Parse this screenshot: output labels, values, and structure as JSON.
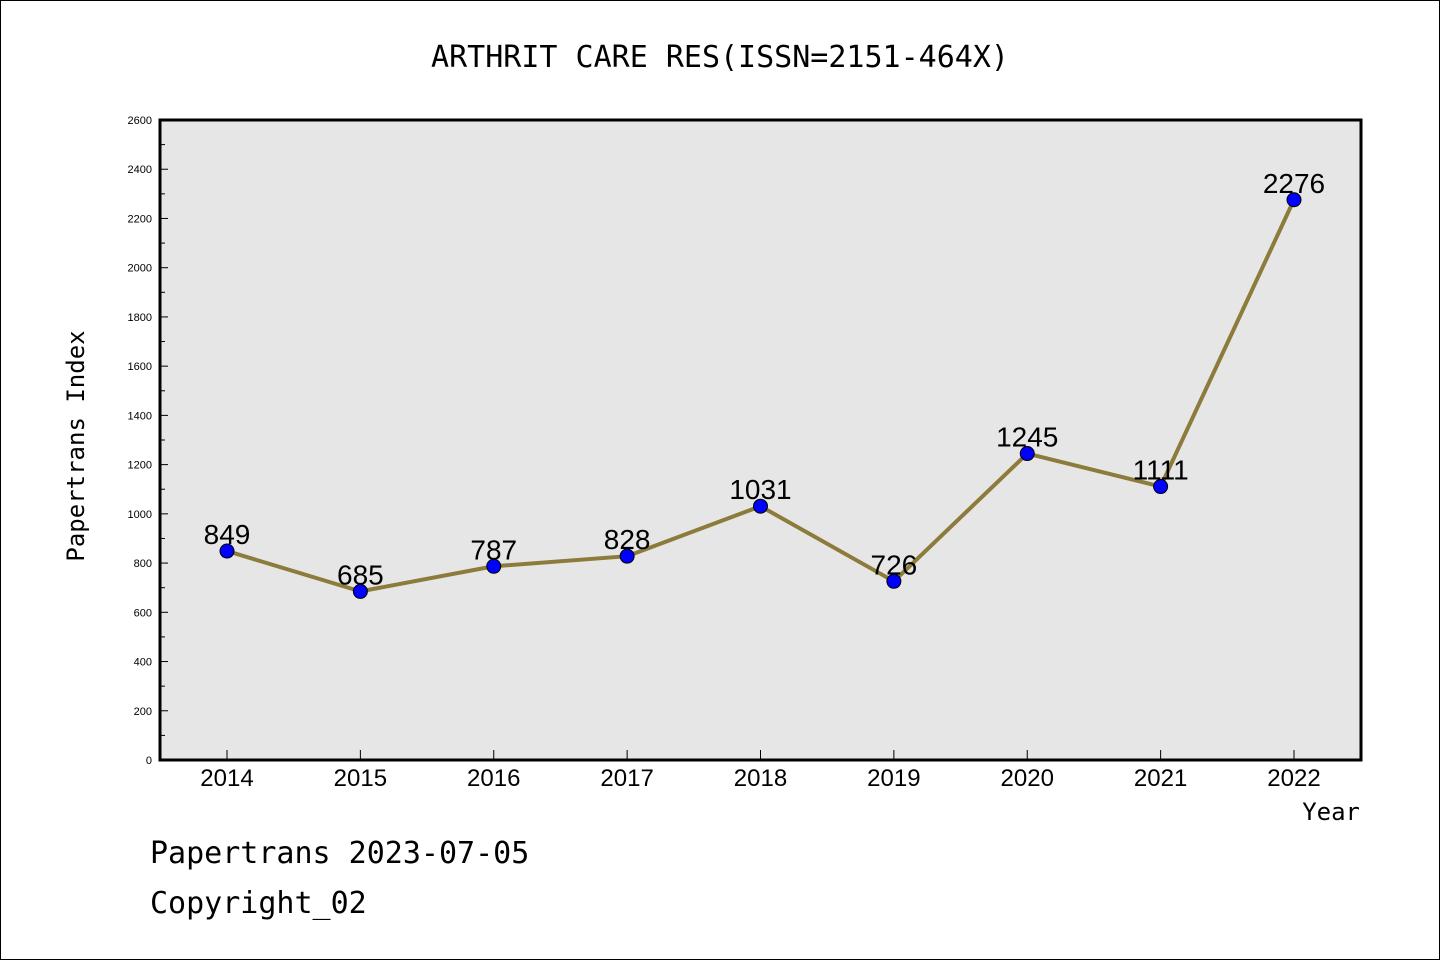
{
  "chart_data": {
    "type": "line",
    "title": "ARTHRIT CARE RES(ISSN=2151-464X)",
    "xlabel": "Year",
    "ylabel": "Papertrans Index",
    "categories": [
      "2014",
      "2015",
      "2016",
      "2017",
      "2018",
      "2019",
      "2020",
      "2021",
      "2022"
    ],
    "series": [
      {
        "values": [
          849,
          685,
          787,
          828,
          1031,
          726,
          1245,
          1111,
          2276
        ]
      }
    ],
    "ylim": [
      0,
      2600
    ],
    "yticks": [
      "0",
      "200",
      "400",
      "600",
      "800",
      "1000",
      "1200",
      "1400",
      "1600",
      "1800",
      "2000",
      "2200",
      "2400",
      "2600"
    ],
    "grid": false,
    "line_color": "#8c7b3a",
    "marker_color": "#0000ff",
    "plot_background": "#e6e6e6"
  },
  "footer": {
    "date_line": "Papertrans 2023-07-05",
    "copyright": "Copyright_02"
  }
}
